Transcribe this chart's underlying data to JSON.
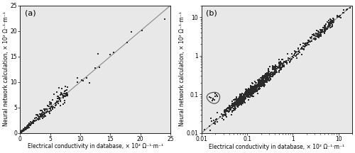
{
  "panel_a": {
    "xlim": [
      0,
      25
    ],
    "ylim": [
      0,
      25
    ],
    "xlabel": "Electrical conductivity in database, × 10² Ω⁻¹·m⁻¹",
    "ylabel": "Neural network calculation, × 10² Ω⁻¹·m⁻¹",
    "xticks": [
      0,
      5,
      10,
      15,
      20,
      25
    ],
    "yticks": [
      0,
      5,
      10,
      15,
      20,
      25
    ],
    "label": "(a)"
  },
  "panel_b": {
    "xlim": [
      0.01,
      20
    ],
    "ylim": [
      0.01,
      20
    ],
    "xlabel": "Electrical conductivity in database, × 10² Ω⁻¹·m⁻¹",
    "ylabel": "Neural network calculation, × 10² Ω⁻¹·m⁻¹",
    "label": "(b)",
    "xticks": [
      0.01,
      0.1,
      1,
      10
    ],
    "yticks": [
      0.01,
      0.1,
      1,
      10
    ],
    "xticklabels": [
      "0.01",
      "0.1",
      "1",
      "10"
    ],
    "yticklabels": [
      "0.01",
      "0.1",
      "1",
      "10"
    ]
  },
  "marker_size": 1.5,
  "marker_color": "#2a2a2a",
  "line_color": "#888888",
  "bg_color": "#e8e8e8",
  "tick_fontsize": 5.5,
  "label_fontsize": 5.5,
  "panel_label_fontsize": 8
}
